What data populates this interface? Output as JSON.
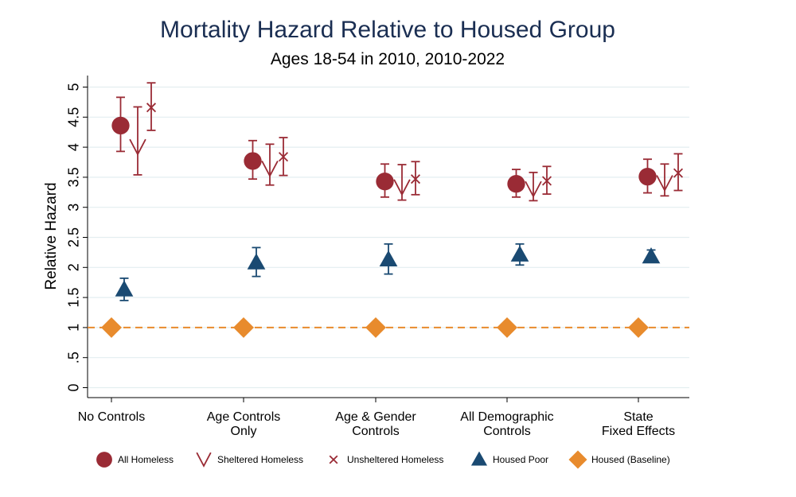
{
  "chart_data": {
    "type": "scatter",
    "title": "Mortality Hazard Relative to Housed Group",
    "subtitle": "Ages 18-54 in 2010, 2010-2022",
    "xlabel": "",
    "ylabel": "Relative Hazard",
    "ylim": [
      0,
      5
    ],
    "yticks": [
      {
        "value": 0,
        "label": "0"
      },
      {
        "value": 0.5,
        "label": ".5"
      },
      {
        "value": 1,
        "label": "1"
      },
      {
        "value": 1.5,
        "label": "1.5"
      },
      {
        "value": 2,
        "label": "2"
      },
      {
        "value": 2.5,
        "label": "2.5"
      },
      {
        "value": 3,
        "label": "3"
      },
      {
        "value": 3.5,
        "label": "3.5"
      },
      {
        "value": 4,
        "label": "4"
      },
      {
        "value": 4.5,
        "label": "4.5"
      },
      {
        "value": 5,
        "label": "5"
      }
    ],
    "grid": true,
    "legend_position": "bottom",
    "categories": [
      {
        "line1": "No Controls",
        "line2": ""
      },
      {
        "line1": "Age Controls",
        "line2": "Only"
      },
      {
        "line1": "Age & Gender",
        "line2": "Controls"
      },
      {
        "line1": "All Demographic",
        "line2": "Controls"
      },
      {
        "line1": "State",
        "line2": "Fixed Effects"
      }
    ],
    "series": [
      {
        "name": "All Homeless",
        "marker": "circle",
        "color": "#9a2b35",
        "values": [
          4.36,
          3.77,
          3.43,
          3.39,
          3.51
        ],
        "ci_low": [
          3.93,
          3.47,
          3.17,
          3.17,
          3.24
        ],
        "ci_high": [
          4.83,
          4.11,
          3.72,
          3.63,
          3.8
        ]
      },
      {
        "name": "Sheltered Homeless",
        "marker": "v",
        "color": "#9a2b35",
        "values": [
          4.0,
          3.64,
          3.33,
          3.3,
          3.4
        ],
        "ci_low": [
          3.54,
          3.37,
          3.12,
          3.11,
          3.19
        ],
        "ci_high": [
          4.67,
          4.05,
          3.71,
          3.58,
          3.72
        ]
      },
      {
        "name": "Unsheltered Homeless",
        "marker": "x",
        "color": "#9a2b35",
        "values": [
          4.66,
          3.84,
          3.47,
          3.44,
          3.57
        ],
        "ci_low": [
          4.28,
          3.53,
          3.21,
          3.22,
          3.28
        ],
        "ci_high": [
          5.07,
          4.16,
          3.76,
          3.68,
          3.89
        ]
      },
      {
        "name": "Housed Poor",
        "marker": "triangle",
        "color": "#1a4a72",
        "values": [
          1.63,
          2.08,
          2.13,
          2.21,
          2.18
        ],
        "ci_low": [
          1.45,
          1.85,
          1.89,
          2.04,
          2.09
        ],
        "ci_high": [
          1.82,
          2.33,
          2.39,
          2.39,
          2.29
        ]
      },
      {
        "name": "Housed (Baseline)",
        "marker": "diamond",
        "color": "#e88b2d",
        "values": [
          1,
          1,
          1,
          1,
          1
        ]
      }
    ],
    "baseline": {
      "value": 1,
      "color": "#e88b2d",
      "style": "dashed"
    }
  }
}
